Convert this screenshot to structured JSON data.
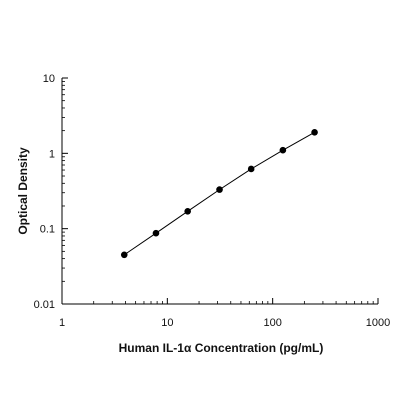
{
  "chart_data": {
    "type": "scatter",
    "title": "",
    "xlabel": "Human IL-1α Concentration (pg/mL)",
    "ylabel": "Optical Density",
    "x_scale": "log",
    "y_scale": "log",
    "xlim": [
      1,
      1000
    ],
    "ylim": [
      0.01,
      10
    ],
    "x_ticks": [
      {
        "value": 1,
        "label": "1"
      },
      {
        "value": 10,
        "label": "10"
      },
      {
        "value": 100,
        "label": "100"
      },
      {
        "value": 1000,
        "label": "1000"
      }
    ],
    "y_ticks": [
      {
        "value": 0.01,
        "label": "0.01"
      },
      {
        "value": 0.1,
        "label": "0.1"
      },
      {
        "value": 1,
        "label": "1"
      },
      {
        "value": 10,
        "label": "10"
      }
    ],
    "grid": false,
    "fit_line": true,
    "series": [
      {
        "points": [
          {
            "x": 3.9,
            "y": 0.045
          },
          {
            "x": 7.8,
            "y": 0.087
          },
          {
            "x": 15.6,
            "y": 0.17
          },
          {
            "x": 31.3,
            "y": 0.33
          },
          {
            "x": 62.5,
            "y": 0.62
          },
          {
            "x": 125,
            "y": 1.1
          },
          {
            "x": 250,
            "y": 1.9
          }
        ]
      }
    ],
    "colors": {
      "marker": "#000000",
      "line": "#000000",
      "axis": "#000000"
    }
  }
}
